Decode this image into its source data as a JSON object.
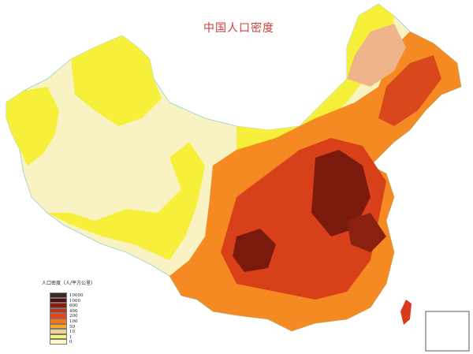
{
  "title": "中国人口密度",
  "legend": {
    "title": "人口密度（人/平方公里）",
    "items": [
      {
        "label": "10000",
        "color": "#3a2a2a"
      },
      {
        "label": "1000",
        "color": "#5a0808"
      },
      {
        "label": "600",
        "color": "#8a1c0a"
      },
      {
        "label": "400",
        "color": "#c3321c"
      },
      {
        "label": "200",
        "color": "#ea4418"
      },
      {
        "label": "100",
        "color": "#ff7410"
      },
      {
        "label": "50",
        "color": "#ffa526"
      },
      {
        "label": "10",
        "color": "#f3cf95"
      },
      {
        "label": "1",
        "color": "#f6f27a"
      },
      {
        "label": "0",
        "color": "#fcfbc8"
      }
    ]
  }
}
